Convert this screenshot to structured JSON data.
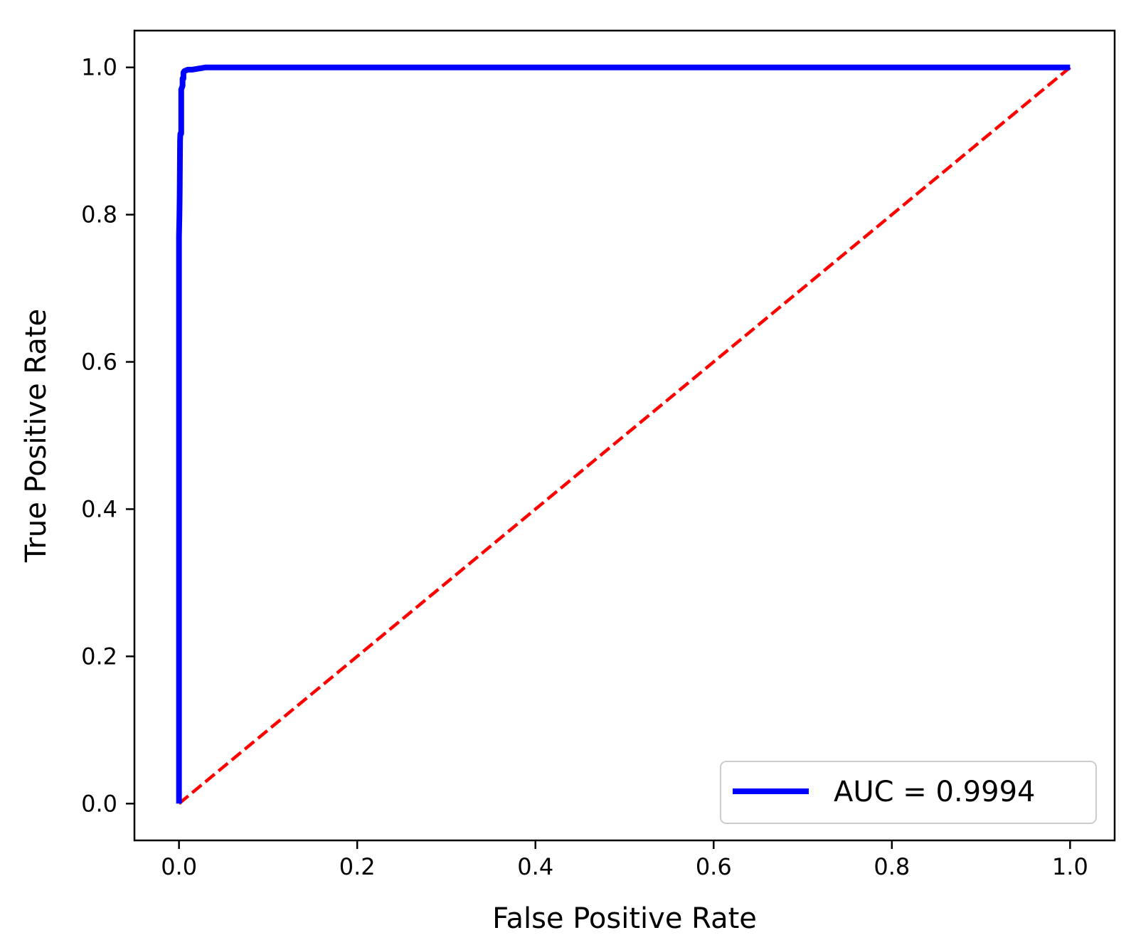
{
  "chart_data": {
    "type": "line",
    "title": "",
    "xlabel": "False Positive Rate",
    "ylabel": "True Positive Rate",
    "xlim": [
      -0.05,
      1.05
    ],
    "ylim": [
      -0.05,
      1.05
    ],
    "xticks": [
      "0.0",
      "0.2",
      "0.4",
      "0.6",
      "0.8",
      "1.0"
    ],
    "yticks": [
      "0.0",
      "0.2",
      "0.4",
      "0.6",
      "0.8",
      "1.0"
    ],
    "grid": false,
    "legend_position": "lower-right",
    "series": [
      {
        "name": "AUC = 0.9994",
        "color": "#0000ff",
        "style": "solid",
        "x": [
          0.0,
          0.0,
          0.0,
          0.0005,
          0.0008,
          0.0012,
          0.0015,
          0.0025,
          0.0025,
          0.004,
          0.004,
          0.005,
          0.005,
          0.006,
          0.008,
          0.01,
          0.015,
          0.02,
          0.025,
          0.03,
          0.035,
          0.05,
          1.0
        ],
        "y": [
          0.0,
          0.5,
          0.77,
          0.8,
          0.83,
          0.9,
          0.91,
          0.91,
          0.97,
          0.975,
          0.985,
          0.985,
          0.993,
          0.995,
          0.996,
          0.997,
          0.997,
          0.998,
          0.999,
          1.0,
          1.0,
          1.0,
          1.0
        ]
      },
      {
        "name": "",
        "color": "#ff0000",
        "style": "dashed",
        "x": [
          0.0,
          1.0
        ],
        "y": [
          0.0,
          1.0
        ]
      }
    ]
  }
}
